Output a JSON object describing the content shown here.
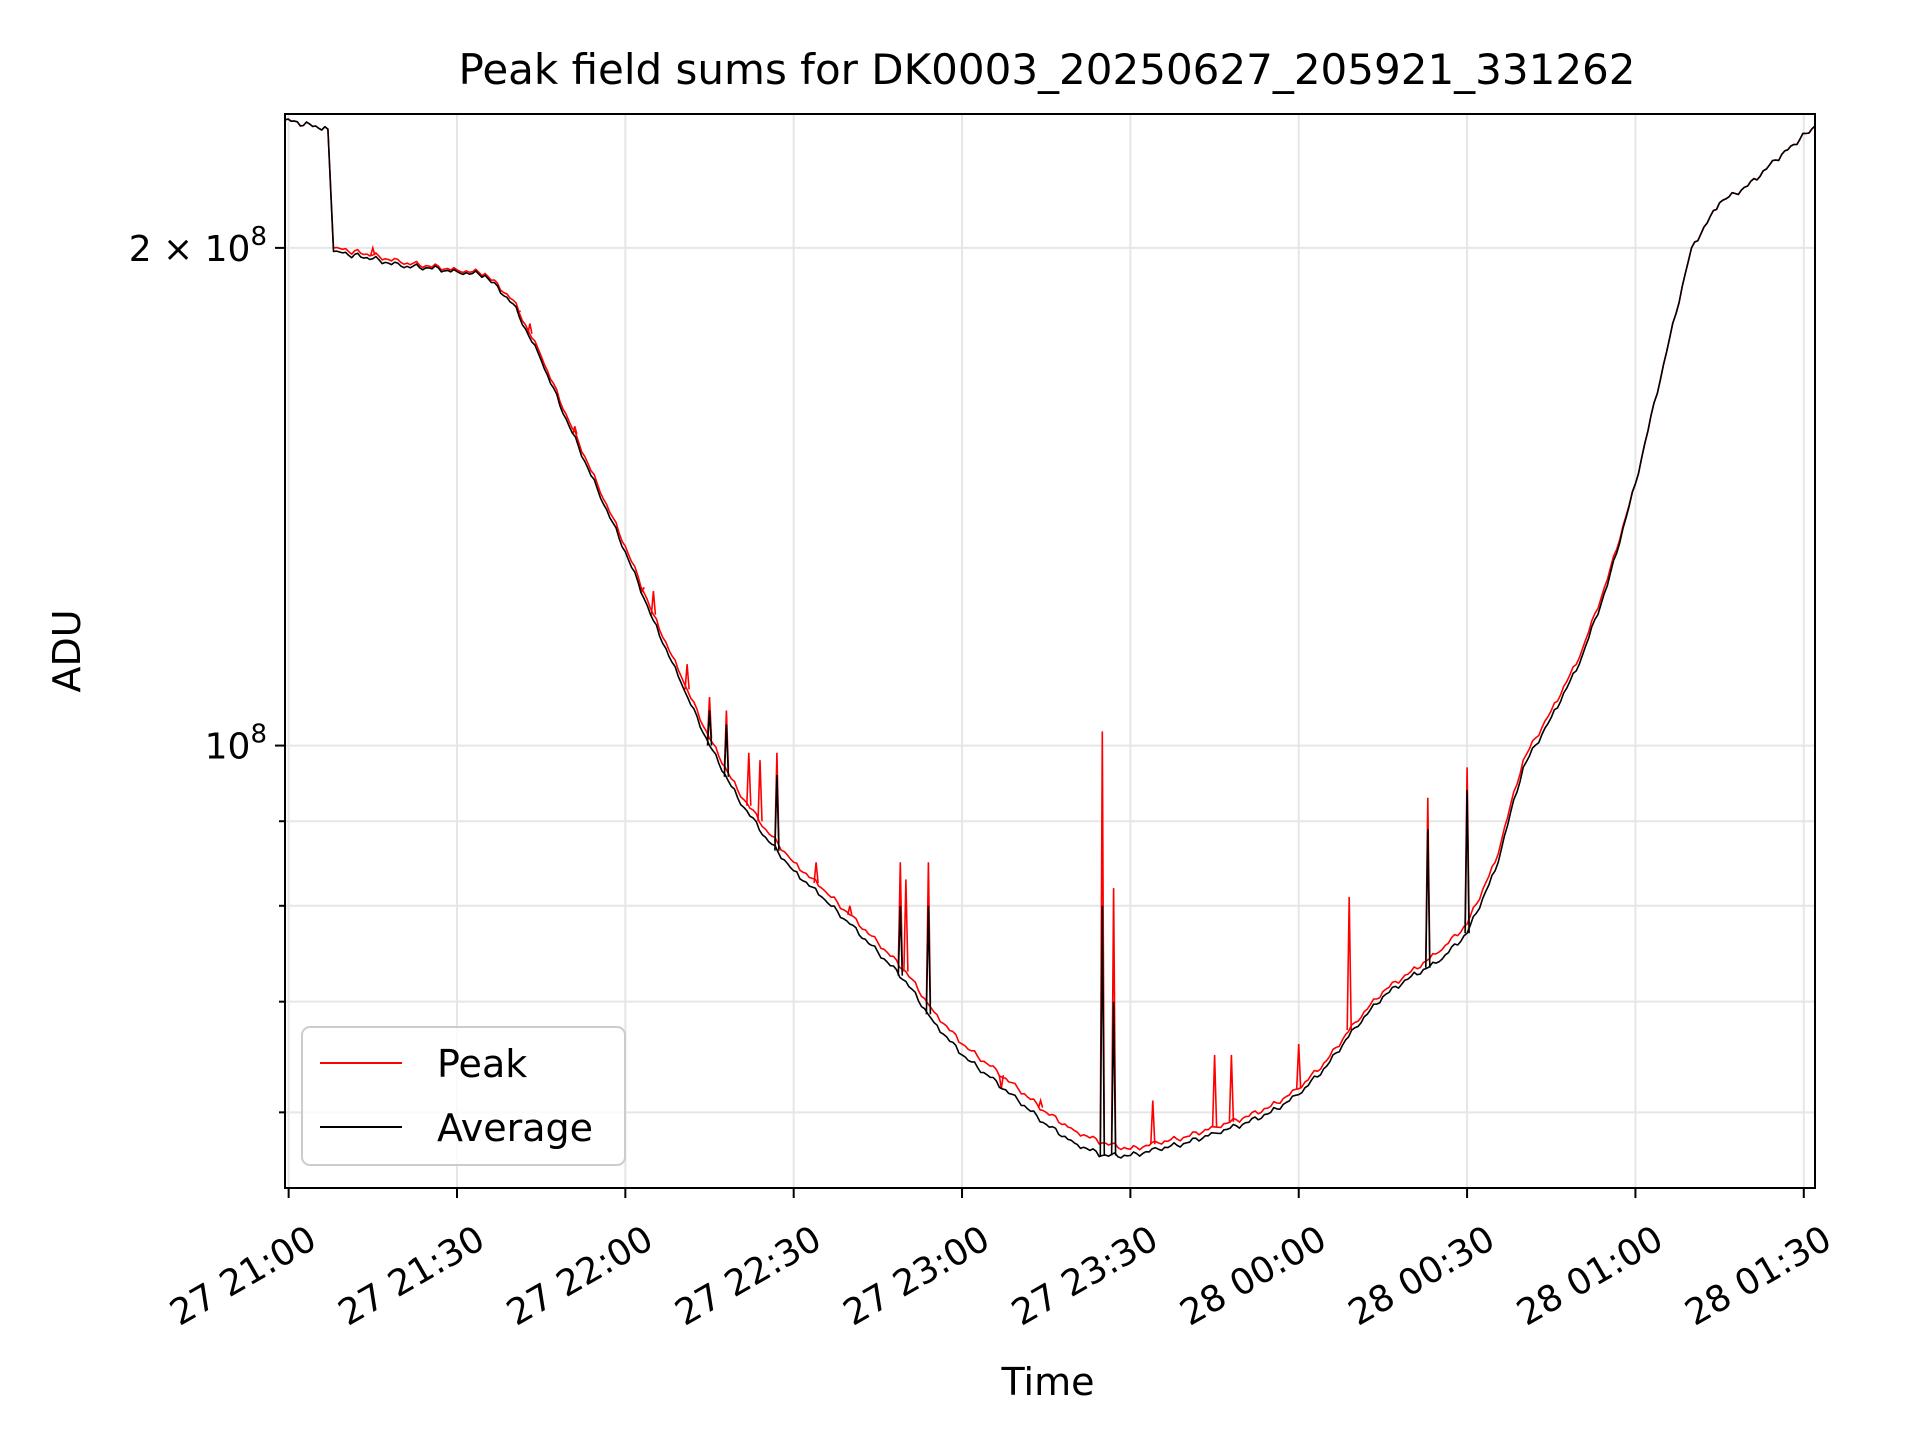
{
  "chart_data": {
    "type": "line",
    "title": "Peak field sums for DK0003_20250627_205921_331262",
    "xlabel": "Time",
    "ylabel": "ADU",
    "y_scale": "log",
    "x_range": [
      "2025-06-27 20:59:21",
      "2025-06-28 01:32:00"
    ],
    "ylim": [
      54000000,
      241000000
    ],
    "x_ticks": [
      {
        "time": "2025-06-27 21:00",
        "label": "27 21:00"
      },
      {
        "time": "2025-06-27 21:30",
        "label": "27 21:30"
      },
      {
        "time": "2025-06-27 22:00",
        "label": "27 22:00"
      },
      {
        "time": "2025-06-27 22:30",
        "label": "27 22:30"
      },
      {
        "time": "2025-06-27 23:00",
        "label": "27 23:00"
      },
      {
        "time": "2025-06-27 23:30",
        "label": "27 23:30"
      },
      {
        "time": "2025-06-28 00:00",
        "label": "28 00:00"
      },
      {
        "time": "2025-06-28 00:30",
        "label": "28 00:30"
      },
      {
        "time": "2025-06-28 01:00",
        "label": "28 01:00"
      },
      {
        "time": "2025-06-28 01:30",
        "label": "28 01:30"
      }
    ],
    "y_major_ticks": [
      {
        "value": 100000000,
        "base": "10",
        "exp": "8"
      },
      {
        "value": 200000000,
        "base": "2 × 10",
        "exp": "8"
      }
    ],
    "y_minor_ticks": [
      60000000,
      70000000,
      80000000,
      90000000
    ],
    "grid": true,
    "legend_position": "lower-left",
    "series": [
      {
        "name": "Peak",
        "color": "#ff0000",
        "x": [
          "2025-06-27 20:59:21",
          "2025-06-27 21:07:00",
          "2025-06-27 21:08:00",
          "2025-06-27 21:15:00",
          "2025-06-27 21:20:00",
          "2025-06-27 21:25:00",
          "2025-06-27 21:30:00",
          "2025-06-27 21:35:00",
          "2025-06-27 21:40:00",
          "2025-06-27 21:45:00",
          "2025-06-27 21:50:00",
          "2025-06-27 21:55:00",
          "2025-06-27 22:00:00",
          "2025-06-27 22:05:00",
          "2025-06-27 22:10:00",
          "2025-06-27 22:15:00",
          "2025-06-27 22:20:00",
          "2025-06-27 22:25:00",
          "2025-06-27 22:30:00",
          "2025-06-27 22:35:00",
          "2025-06-27 22:40:00",
          "2025-06-27 22:45:00",
          "2025-06-27 22:50:00",
          "2025-06-27 22:55:00",
          "2025-06-27 23:00:00",
          "2025-06-27 23:05:00",
          "2025-06-27 23:10:00",
          "2025-06-27 23:15:00",
          "2025-06-27 23:20:00",
          "2025-06-27 23:25:00",
          "2025-06-27 23:30:00",
          "2025-06-27 23:35:00",
          "2025-06-27 23:40:00",
          "2025-06-27 23:45:00",
          "2025-06-27 23:50:00",
          "2025-06-27 23:55:00",
          "2025-06-28 00:00:00",
          "2025-06-28 00:05:00",
          "2025-06-28 00:10:00",
          "2025-06-28 00:15:00",
          "2025-06-28 00:20:00",
          "2025-06-28 00:25:00",
          "2025-06-28 00:30:00",
          "2025-06-28 00:35:00",
          "2025-06-28 00:40:00",
          "2025-06-28 00:45:00",
          "2025-06-28 00:50:00",
          "2025-06-28 00:55:00",
          "2025-06-28 01:00:00",
          "2025-06-28 01:05:00",
          "2025-06-28 01:10:00",
          "2025-06-28 01:15:00",
          "2025-06-28 01:20:00",
          "2025-06-28 01:25:00",
          "2025-06-28 01:32:00"
        ],
        "y": [
          239000000,
          236000000,
          200000000,
          198000000,
          196000000,
          195000000,
          194000000,
          193000000,
          186000000,
          172000000,
          157000000,
          144000000,
          132000000,
          120000000,
          110000000,
          101000000,
          94000000,
          89000000,
          85000000,
          82000000,
          79000000,
          76000000,
          73000000,
          69000000,
          66000000,
          64000000,
          62000000,
          60000000,
          58500000,
          57500000,
          57000000,
          57500000,
          58000000,
          58800000,
          59500000,
          60500000,
          62000000,
          64500000,
          68000000,
          71000000,
          73000000,
          75000000,
          78000000,
          85000000,
          98000000,
          105000000,
          113000000,
          126000000,
          144000000,
          170000000,
          200000000,
          213000000,
          218000000,
          226000000,
          237000000
        ],
        "spikes": [
          {
            "x": "2025-06-27 21:15:00",
            "y": 200000000
          },
          {
            "x": "2025-06-27 21:41:00",
            "y": 183000000
          },
          {
            "x": "2025-06-27 21:43:00",
            "y": 180000000
          },
          {
            "x": "2025-06-27 21:51:00",
            "y": 156000000
          },
          {
            "x": "2025-06-27 22:03:00",
            "y": 124000000
          },
          {
            "x": "2025-06-27 22:05:00",
            "y": 124000000
          },
          {
            "x": "2025-06-27 22:11:00",
            "y": 112000000
          },
          {
            "x": "2025-06-27 22:15:00",
            "y": 107000000
          },
          {
            "x": "2025-06-27 22:18:00",
            "y": 105000000
          },
          {
            "x": "2025-06-27 22:22:00",
            "y": 99000000
          },
          {
            "x": "2025-06-27 22:24:00",
            "y": 98000000
          },
          {
            "x": "2025-06-27 22:27:00",
            "y": 99000000
          },
          {
            "x": "2025-06-27 22:34:00",
            "y": 85000000
          },
          {
            "x": "2025-06-27 22:40:00",
            "y": 80000000
          },
          {
            "x": "2025-06-27 22:49:00",
            "y": 85000000
          },
          {
            "x": "2025-06-27 22:50:00",
            "y": 83000000
          },
          {
            "x": "2025-06-27 22:54:00",
            "y": 85000000
          },
          {
            "x": "2025-06-27 23:07:00",
            "y": 62000000
          },
          {
            "x": "2025-06-27 23:14:00",
            "y": 61000000
          },
          {
            "x": "2025-06-27 23:25:00",
            "y": 102000000
          },
          {
            "x": "2025-06-27 23:27:00",
            "y": 82000000
          },
          {
            "x": "2025-06-27 23:34:00",
            "y": 61000000
          },
          {
            "x": "2025-06-27 23:45:00",
            "y": 65000000
          },
          {
            "x": "2025-06-27 23:48:00",
            "y": 65000000
          },
          {
            "x": "2025-06-28 00:00:00",
            "y": 66000000
          },
          {
            "x": "2025-06-28 00:09:00",
            "y": 81000000
          },
          {
            "x": "2025-06-28 00:23:00",
            "y": 93000000
          },
          {
            "x": "2025-06-28 00:30:00",
            "y": 97000000
          }
        ]
      },
      {
        "name": "Average",
        "color": "#000000",
        "x": [
          "2025-06-27 20:59:21",
          "2025-06-27 21:07:00",
          "2025-06-27 21:08:00",
          "2025-06-27 21:15:00",
          "2025-06-27 21:20:00",
          "2025-06-27 21:25:00",
          "2025-06-27 21:30:00",
          "2025-06-27 21:35:00",
          "2025-06-27 21:40:00",
          "2025-06-27 21:45:00",
          "2025-06-27 21:50:00",
          "2025-06-27 21:55:00",
          "2025-06-27 22:00:00",
          "2025-06-27 22:05:00",
          "2025-06-27 22:10:00",
          "2025-06-27 22:15:00",
          "2025-06-27 22:20:00",
          "2025-06-27 22:25:00",
          "2025-06-27 22:30:00",
          "2025-06-27 22:35:00",
          "2025-06-27 22:40:00",
          "2025-06-27 22:45:00",
          "2025-06-27 22:50:00",
          "2025-06-27 22:55:00",
          "2025-06-27 23:00:00",
          "2025-06-27 23:05:00",
          "2025-06-27 23:10:00",
          "2025-06-27 23:15:00",
          "2025-06-27 23:20:00",
          "2025-06-27 23:25:00",
          "2025-06-27 23:30:00",
          "2025-06-27 23:35:00",
          "2025-06-27 23:40:00",
          "2025-06-27 23:45:00",
          "2025-06-27 23:50:00",
          "2025-06-27 23:55:00",
          "2025-06-28 00:00:00",
          "2025-06-28 00:05:00",
          "2025-06-28 00:10:00",
          "2025-06-28 00:15:00",
          "2025-06-28 00:20:00",
          "2025-06-28 00:25:00",
          "2025-06-28 00:30:00",
          "2025-06-28 00:35:00",
          "2025-06-28 00:40:00",
          "2025-06-28 00:45:00",
          "2025-06-28 00:50:00",
          "2025-06-28 00:55:00",
          "2025-06-28 01:00:00",
          "2025-06-28 01:05:00",
          "2025-06-28 01:10:00",
          "2025-06-28 01:15:00",
          "2025-06-28 01:20:00",
          "2025-06-28 01:25:00",
          "2025-06-28 01:32:00"
        ],
        "y": [
          239000000,
          236000000,
          199000000,
          197000000,
          195000000,
          194500000,
          193500000,
          192500000,
          185000000,
          171000000,
          156000000,
          143000000,
          131000000,
          119000000,
          109000000,
          100000000,
          93000000,
          88000000,
          84000000,
          81000000,
          78000000,
          75000000,
          72000000,
          68000000,
          65000000,
          63000000,
          61000000,
          59000000,
          57500000,
          56500000,
          56500000,
          57000000,
          57500000,
          58300000,
          59000000,
          60000000,
          61500000,
          64000000,
          67500000,
          70500000,
          72500000,
          74000000,
          77000000,
          84000000,
          97000000,
          104000000,
          112000000,
          125000000,
          144000000,
          170000000,
          200000000,
          213000000,
          218000000,
          226000000,
          237000000
        ],
        "spikes": [
          {
            "x": "2025-06-27 22:15:00",
            "y": 105000000
          },
          {
            "x": "2025-06-27 22:18:00",
            "y": 103000000
          },
          {
            "x": "2025-06-27 22:27:00",
            "y": 96000000
          },
          {
            "x": "2025-06-27 22:49:00",
            "y": 80000000
          },
          {
            "x": "2025-06-27 22:54:00",
            "y": 80000000
          },
          {
            "x": "2025-06-27 23:25:00",
            "y": 80000000
          },
          {
            "x": "2025-06-27 23:27:00",
            "y": 70000000
          },
          {
            "x": "2025-06-28 00:23:00",
            "y": 89000000
          },
          {
            "x": "2025-06-28 00:30:00",
            "y": 94000000
          }
        ]
      }
    ]
  }
}
